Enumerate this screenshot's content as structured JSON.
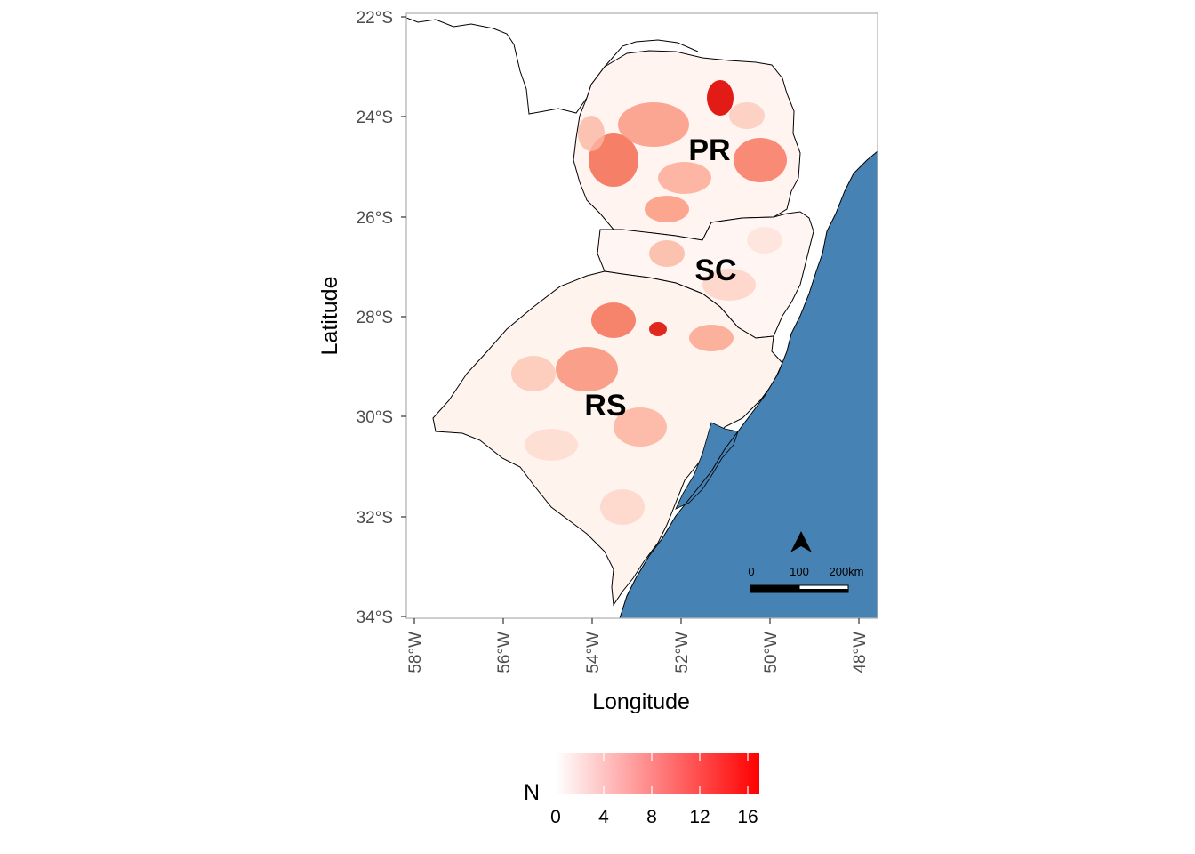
{
  "axes": {
    "x_title": "Longitude",
    "y_title": "Latitude",
    "x_ticks": [
      "58°W",
      "56°W",
      "54°W",
      "52°W",
      "50°W",
      "48°W"
    ],
    "y_ticks": [
      "22°S",
      "24°S",
      "26°S",
      "28°S",
      "30°S",
      "32°S",
      "34°S"
    ]
  },
  "regions": {
    "pr": "PR",
    "sc": "SC",
    "rs": "RS"
  },
  "scalebar": {
    "label_0": "0",
    "label_100": "100",
    "label_200": "200km"
  },
  "legend": {
    "title": "N",
    "ticks": [
      "0",
      "4",
      "8",
      "12",
      "16"
    ],
    "color_low": "#ffffff",
    "color_high": "#ff0000"
  },
  "colors": {
    "ocean": "#4682b4",
    "border": "#000000",
    "panel_border": "#b3b3b3"
  },
  "chart_data": {
    "type": "heatmap",
    "map_type": "choropleth",
    "xlabel": "Longitude",
    "ylabel": "Latitude",
    "xlim": [
      -58.2,
      -47.6
    ],
    "ylim": [
      -34,
      -22
    ],
    "x_tick_values": [
      -58,
      -56,
      -54,
      -52,
      -50,
      -48
    ],
    "y_tick_values": [
      -22,
      -24,
      -26,
      -28,
      -30,
      -32,
      -34
    ],
    "legend_title": "N",
    "legend_range": [
      0,
      17
    ],
    "legend_ticks": [
      0,
      4,
      8,
      12,
      16
    ],
    "legend_placement": "bottom",
    "states": [
      "PR",
      "SC",
      "RS"
    ],
    "scalebar_km": [
      0,
      100,
      200
    ],
    "north_arrow": true,
    "grid": false
  }
}
